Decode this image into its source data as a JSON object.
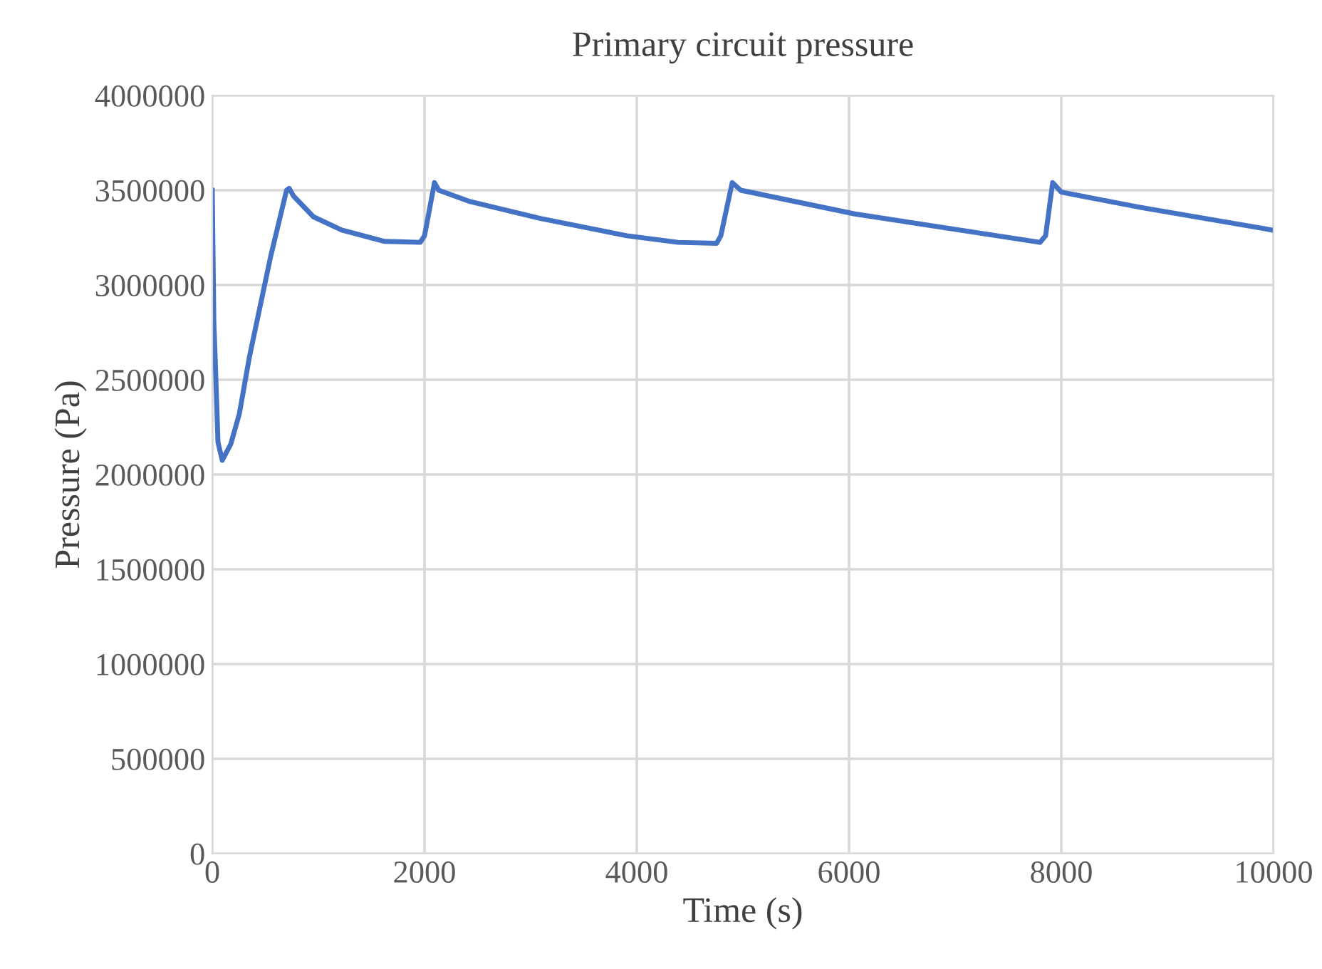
{
  "chart_data": {
    "type": "line",
    "title": "Primary circuit pressure",
    "xlabel": "Time (s)",
    "ylabel": "Pressure (Pa)",
    "series": [
      {
        "color": "#4472c4",
        "x": [
          0,
          15,
          27,
          54,
          94,
          174,
          255,
          350,
          550,
          700,
          725,
          765,
          953,
          1220,
          1624,
          1960,
          2000,
          2094,
          2134,
          2430,
          3100,
          3906,
          4389,
          4752,
          4792,
          4899,
          4980,
          6054,
          7799,
          7852,
          7919,
          8000,
          8738,
          9987
        ],
        "values": [
          3500000,
          2800000,
          2620000,
          2170000,
          2075000,
          2160000,
          2320000,
          2620000,
          3150000,
          3500000,
          3510000,
          3470000,
          3360000,
          3290000,
          3230000,
          3225000,
          3260000,
          3540000,
          3500000,
          3440000,
          3350000,
          3260000,
          3225000,
          3220000,
          3260000,
          3540000,
          3500000,
          3375000,
          3225000,
          3260000,
          3540000,
          3490000,
          3410000,
          3290000
        ]
      }
    ],
    "xlim": [
      0,
      10000
    ],
    "xticks": [
      0,
      2000,
      4000,
      6000,
      8000,
      10000
    ],
    "ylim": [
      0,
      4000000
    ],
    "yticks": [
      0,
      500000,
      1000000,
      1500000,
      2000000,
      2500000,
      3000000,
      3500000,
      4000000
    ],
    "grid": true,
    "legend": false,
    "marker": "none",
    "line_style": "solid"
  }
}
